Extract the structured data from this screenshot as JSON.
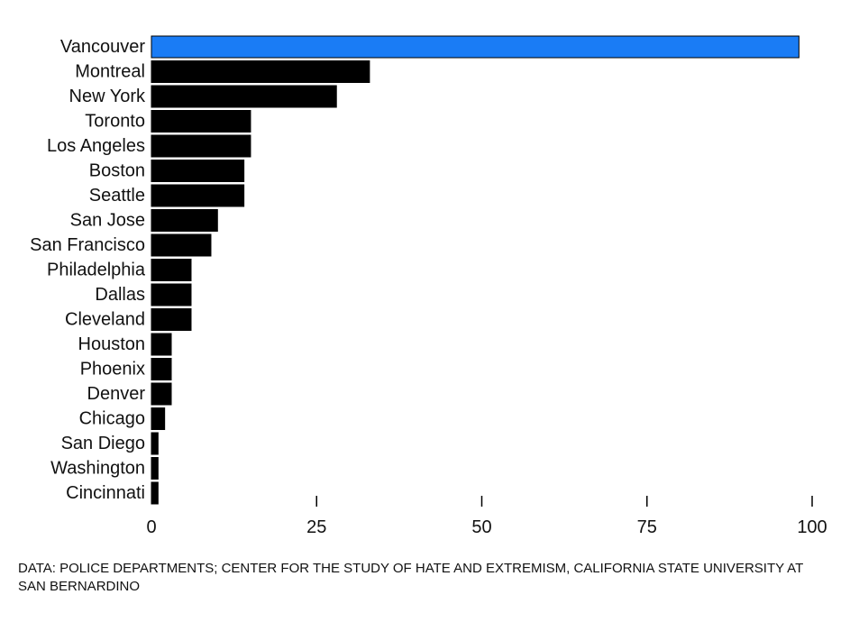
{
  "chart_data": {
    "type": "bar",
    "orientation": "horizontal",
    "categories": [
      "Vancouver",
      "Montreal",
      "New York",
      "Toronto",
      "Los Angeles",
      "Boston",
      "Seattle",
      "San Jose",
      "San Francisco",
      "Philadelphia",
      "Dallas",
      "Cleveland",
      "Houston",
      "Phoenix",
      "Denver",
      "Chicago",
      "San Diego",
      "Washington",
      "Cincinnati"
    ],
    "values": [
      98,
      33,
      28,
      15,
      15,
      14,
      14,
      10,
      9,
      6,
      6,
      6,
      3,
      3,
      3,
      2,
      1,
      1,
      1
    ],
    "highlight_category": "Vancouver",
    "highlight_color": "#1a7cf5",
    "bar_color": "#000000",
    "xlim": [
      0,
      100
    ],
    "xticks": [
      0,
      25,
      50,
      75,
      100
    ],
    "title": "",
    "xlabel": "",
    "ylabel": "",
    "grid": false,
    "legend": "none"
  },
  "source_note": "DATA: POLICE DEPARTMENTS; CENTER FOR THE STUDY OF HATE AND EXTREMISM, CALIFORNIA STATE UNIVERSITY AT SAN BERNARDINO"
}
